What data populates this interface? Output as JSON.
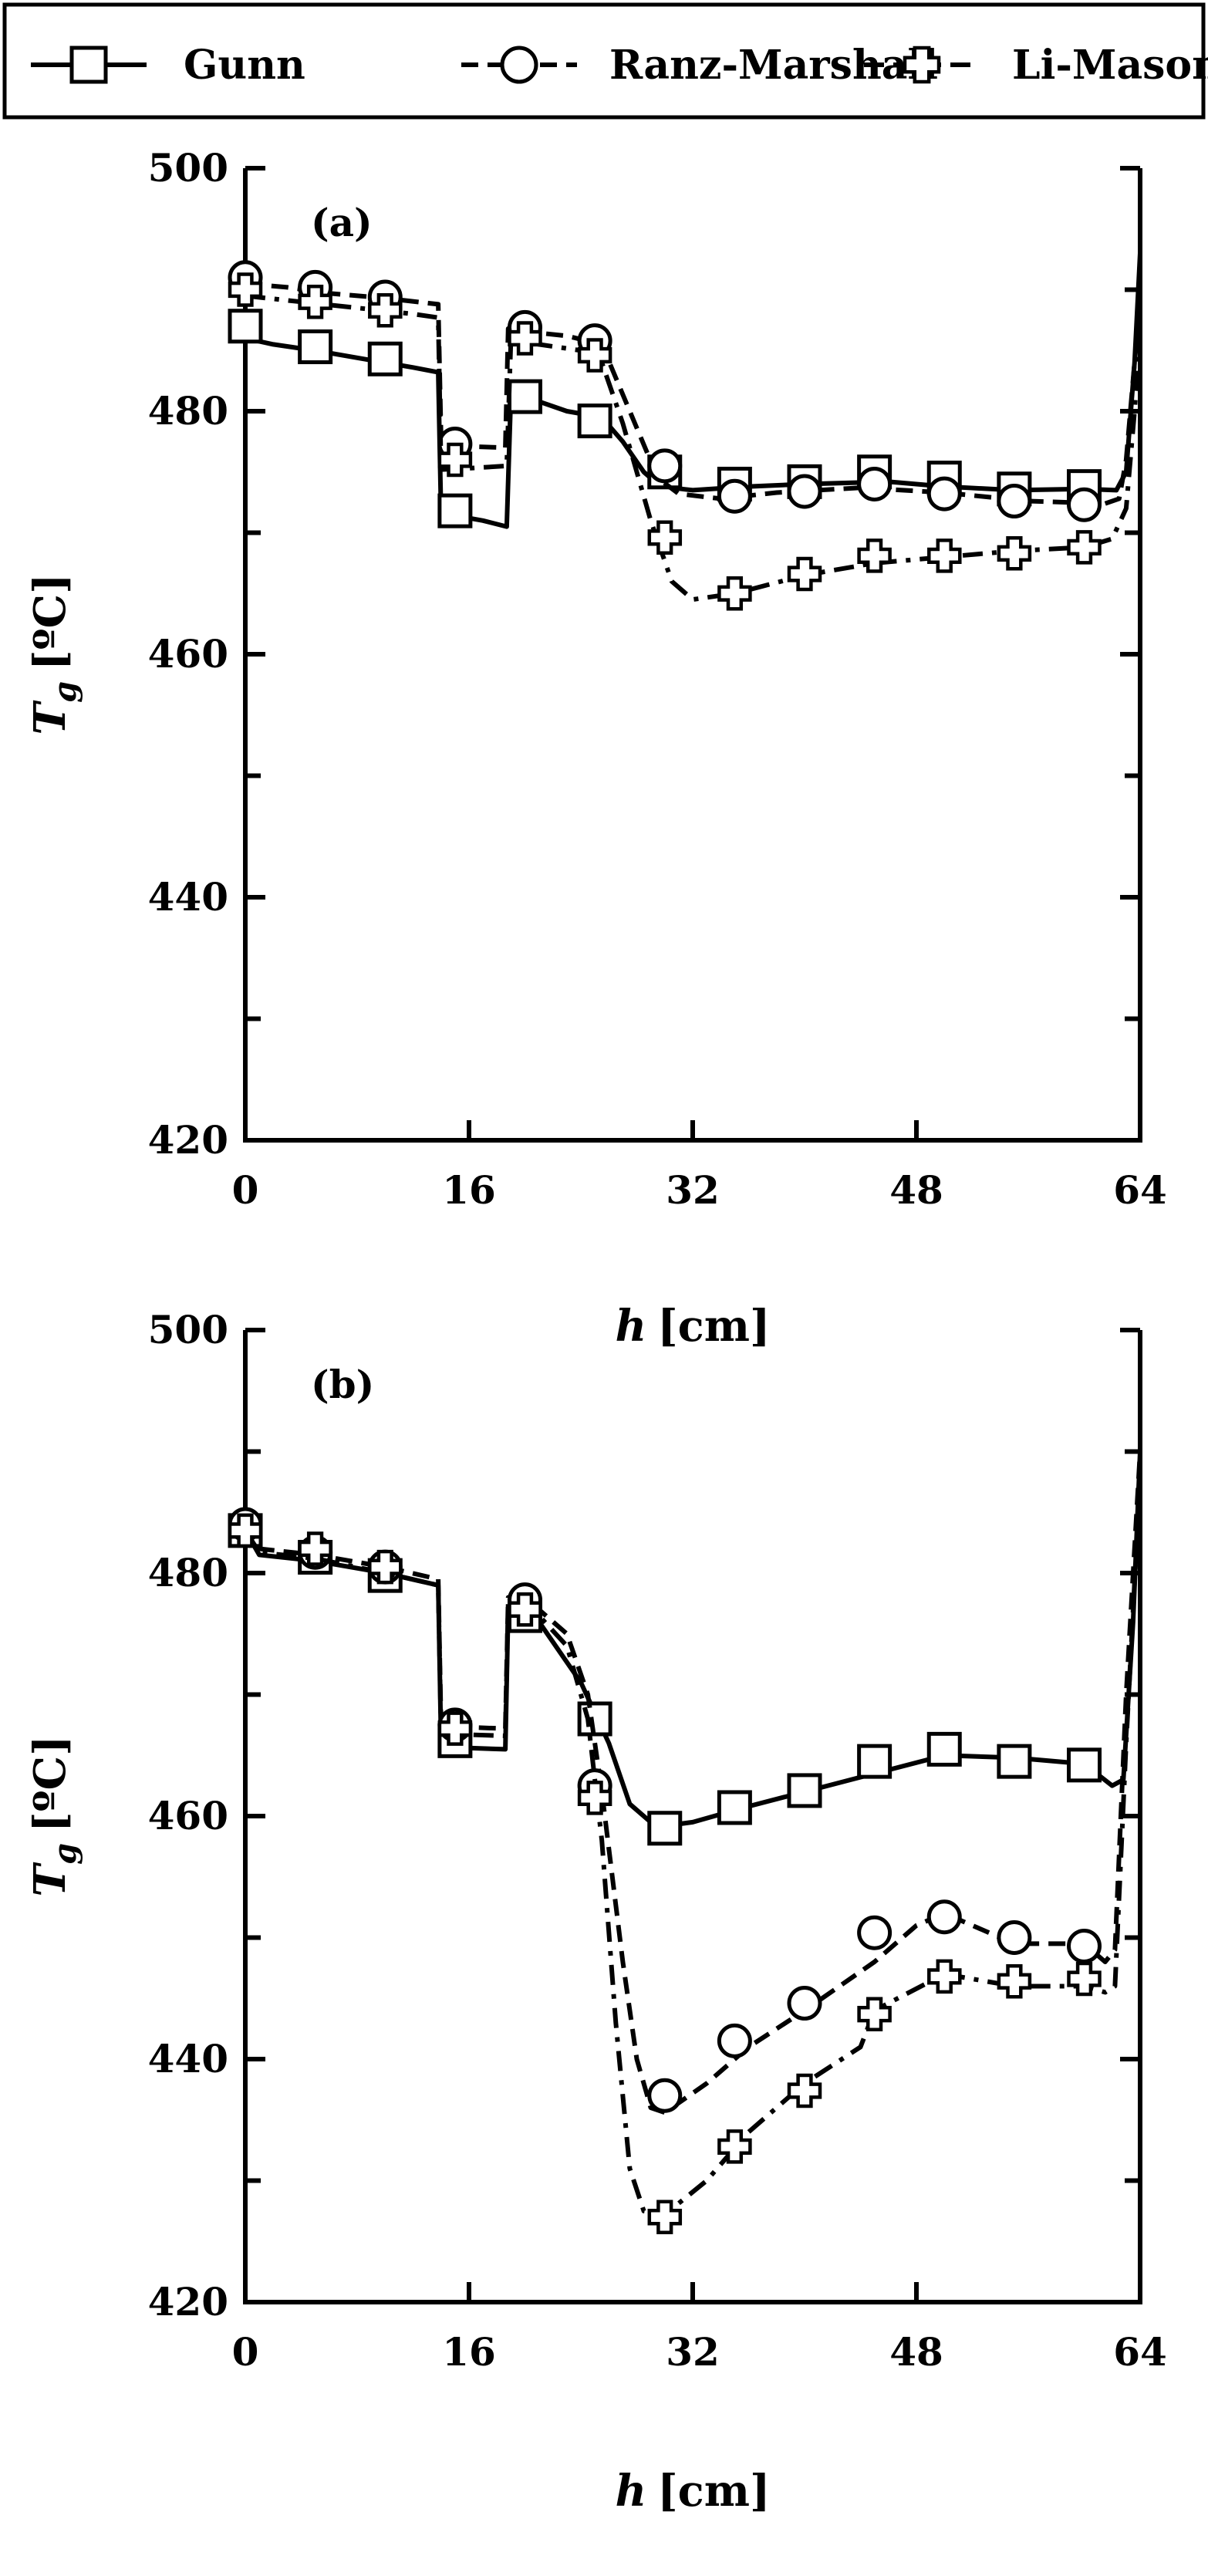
{
  "legend": {
    "items": [
      {
        "label": "Gunn",
        "marker": "square",
        "dash": "solid"
      },
      {
        "label": "Ranz-Marshall",
        "marker": "circle",
        "dash": "dashed"
      },
      {
        "label": "Li-Mason",
        "marker": "plus",
        "dash": "dashdot"
      }
    ]
  },
  "chart_data": [
    {
      "type": "line",
      "panel_label": "(a)",
      "xlabel": "h",
      "xlabel_unit": "[cm]",
      "ylabel": "T",
      "ylabel_sub": "g",
      "ylabel_unit": "[ºC]",
      "xlim": [
        0,
        64
      ],
      "ylim": [
        420,
        500
      ],
      "xticks": [
        0,
        16,
        32,
        48,
        64
      ],
      "yticks": [
        420,
        440,
        460,
        480,
        500
      ],
      "yticks_minor": [
        430,
        450,
        470,
        490
      ],
      "series": [
        {
          "name": "Gunn",
          "marker": "square",
          "dash": "solid",
          "x": [
            0,
            2,
            5,
            9,
            12,
            13.8,
            14,
            16,
            17,
            18.7,
            19,
            20.5,
            23,
            25.5,
            27,
            28.5,
            29.5,
            30.5,
            32,
            36,
            40,
            46,
            50,
            55,
            60,
            62.3,
            63,
            63.6,
            64
          ],
          "y": [
            486,
            485.5,
            485,
            484.2,
            483.6,
            483.2,
            471.5,
            471.2,
            471,
            470.5,
            481.5,
            481,
            480,
            479.5,
            477.5,
            475,
            474,
            473.7,
            473.5,
            473.8,
            474,
            474.2,
            473.8,
            473.5,
            473.6,
            473.5,
            475,
            484,
            493
          ],
          "markers_x": [
            0,
            5,
            10,
            15,
            20,
            25,
            30,
            35,
            40,
            45,
            50,
            55,
            60
          ],
          "markers_y": [
            487,
            485.3,
            484.3,
            471.8,
            481.2,
            479.2,
            475,
            474,
            474.2,
            475,
            474.5,
            473.6,
            473.8
          ]
        },
        {
          "name": "Ranz-Marshall",
          "marker": "circle",
          "dash": "dashed",
          "x": [
            0,
            3,
            6,
            10,
            13.8,
            14,
            16,
            18.6,
            18.8,
            20.5,
            23,
            25.5,
            27.5,
            29.5,
            31,
            34,
            38,
            44,
            50,
            56,
            61.5,
            62.5,
            63,
            63.6,
            64
          ],
          "y": [
            490.5,
            490.2,
            489.7,
            489.3,
            488.8,
            477.8,
            477.1,
            477,
            486.8,
            486.5,
            486.2,
            485.5,
            480,
            474.5,
            473.2,
            472.8,
            473.3,
            473.7,
            473.3,
            472.6,
            472.4,
            472.8,
            476,
            484,
            489
          ],
          "markers_x": [
            0,
            5,
            10,
            15,
            20,
            25,
            30,
            35,
            40,
            45,
            50,
            55,
            60
          ],
          "markers_y": [
            491,
            490.2,
            489.4,
            477.3,
            486.9,
            485.8,
            475.5,
            473,
            473.4,
            474,
            473.2,
            472.6,
            472.3
          ]
        },
        {
          "name": "Li-Mason",
          "marker": "plus",
          "dash": "dashdot",
          "x": [
            0,
            4,
            8,
            12,
            13.8,
            14,
            16,
            18.7,
            19,
            21,
            24,
            25.5,
            27,
            29,
            30.5,
            32,
            35,
            40,
            45,
            50,
            55,
            60,
            62,
            63,
            63.6,
            64
          ],
          "y": [
            489.5,
            489,
            488.5,
            488,
            487.7,
            475.2,
            475.3,
            475.5,
            486,
            485.5,
            485,
            484,
            479,
            471,
            466,
            464.5,
            465,
            466.5,
            467.5,
            468,
            468.5,
            468.8,
            469.5,
            472,
            480,
            487
          ],
          "markers_x": [
            0,
            5,
            10,
            15,
            20,
            25,
            30,
            35,
            40,
            45,
            50,
            55,
            60
          ],
          "markers_y": [
            490,
            489,
            488.3,
            476,
            486,
            484.6,
            469.6,
            465,
            466.6,
            468.1,
            468.1,
            468.3,
            468.8
          ]
        }
      ]
    },
    {
      "type": "line",
      "panel_label": "(b)",
      "xlabel": "h",
      "xlabel_unit": "[cm]",
      "ylabel": "T",
      "ylabel_sub": "g",
      "ylabel_unit": "[ºC]",
      "xlim": [
        0,
        64
      ],
      "ylim": [
        420,
        500
      ],
      "xticks": [
        0,
        16,
        32,
        48,
        64
      ],
      "yticks": [
        420,
        440,
        460,
        480,
        500
      ],
      "yticks_minor": [
        430,
        450,
        470,
        490
      ],
      "series": [
        {
          "name": "Gunn",
          "marker": "square",
          "dash": "solid",
          "x": [
            0,
            1,
            5,
            10,
            13.8,
            14,
            16,
            18.6,
            18.8,
            21,
            24,
            26,
            27.5,
            29,
            30,
            32,
            36,
            40,
            45,
            50,
            55,
            60,
            62,
            62.8,
            63.5,
            64
          ],
          "y": [
            483.5,
            481.5,
            481,
            480,
            479,
            466,
            465.6,
            465.5,
            477,
            476,
            471,
            466,
            461,
            459.5,
            459.2,
            459.5,
            460.8,
            462,
            463.5,
            465,
            464.8,
            464.3,
            462.5,
            463,
            476,
            490
          ],
          "markers_x": [
            0,
            5,
            10,
            15,
            20,
            25,
            30,
            35,
            40,
            45,
            50,
            55,
            60
          ],
          "markers_y": [
            483.5,
            481.3,
            479.8,
            466.2,
            476.5,
            468,
            459,
            460.7,
            462.1,
            464.5,
            465.5,
            464.5,
            464.2
          ]
        },
        {
          "name": "Ranz-Marshall",
          "marker": "circle",
          "dash": "dashed",
          "x": [
            0,
            1,
            5,
            10,
            13.8,
            14,
            16,
            18.6,
            18.8,
            21,
            23,
            24.5,
            25.5,
            27,
            28,
            29,
            30,
            33,
            36,
            40,
            45,
            48,
            50,
            55,
            60,
            61.5,
            62.2,
            63,
            64
          ],
          "y": [
            484,
            482,
            481.5,
            480.5,
            479.5,
            467.5,
            467.3,
            467.2,
            478,
            477,
            475,
            470,
            462,
            448,
            440,
            436,
            435.6,
            438,
            441,
            444,
            448,
            451,
            452,
            449.5,
            449.5,
            448,
            449,
            470,
            490
          ],
          "markers_x": [
            0,
            5,
            10,
            15,
            20,
            25,
            30,
            35,
            40,
            45,
            50,
            55,
            60
          ],
          "markers_y": [
            484,
            481.7,
            480.5,
            467.5,
            477.8,
            462.5,
            437,
            441.5,
            444.6,
            450.4,
            451.7,
            450,
            449.3
          ]
        },
        {
          "name": "Li-Mason",
          "marker": "plus",
          "dash": "dashdot",
          "x": [
            0,
            1,
            5,
            10,
            13.8,
            14,
            16,
            18.6,
            18.8,
            21,
            23,
            24.5,
            25.5,
            26.5,
            27.5,
            28.5,
            30,
            33,
            36,
            40,
            44,
            45,
            50,
            55,
            60,
            61.5,
            62.2,
            63,
            64
          ],
          "y": [
            483.5,
            481.7,
            481.2,
            480,
            479,
            466.8,
            466.7,
            466.6,
            477.5,
            476.5,
            474,
            468,
            458,
            443,
            431,
            427.5,
            427.2,
            430,
            434,
            438,
            441,
            444,
            447,
            446,
            446,
            445.5,
            446,
            466,
            488
          ],
          "markers_x": [
            0,
            5,
            10,
            15,
            20,
            25,
            30,
            35,
            40,
            45,
            50,
            55,
            60
          ],
          "markers_y": [
            483.5,
            482,
            480.5,
            467.2,
            477,
            461.5,
            427,
            432.8,
            437.4,
            443.7,
            446.8,
            446.4,
            446.6
          ]
        }
      ]
    }
  ]
}
